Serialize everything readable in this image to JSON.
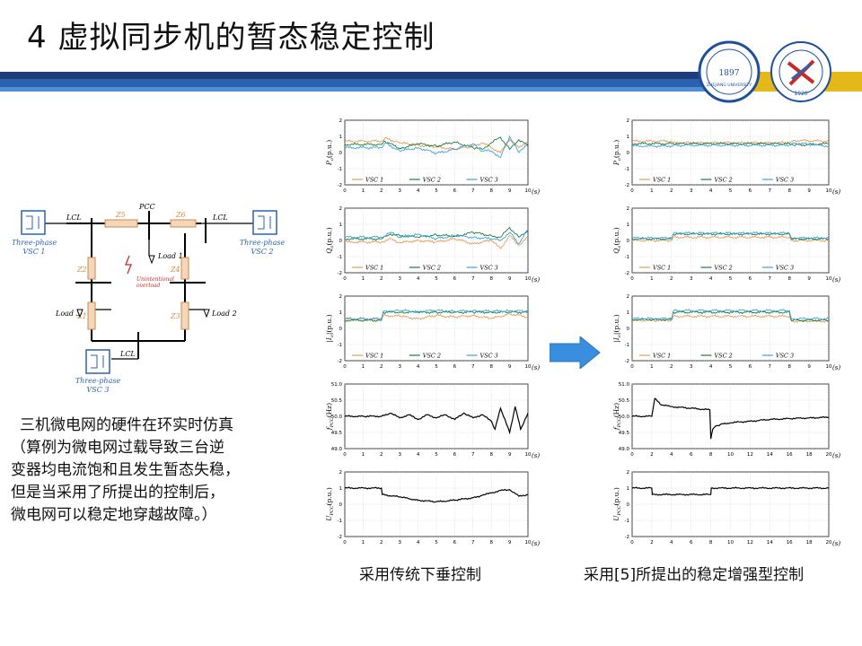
{
  "title": "4 虚拟同步机的暂态稳定控制",
  "colors": {
    "navy": "#1f3d7a",
    "blue": "#2b62b0",
    "accent": "#4f8fd4",
    "yellow": "#e4b818",
    "vsc1": "#e89a5a",
    "vsc2": "#1e7a3a",
    "vsc3": "#3aa3dc",
    "arrow": "#3a8ee0"
  },
  "logos": {
    "zju_text": "ZHEJIANG UNIVERSITY",
    "zju_year": "1897",
    "ee_year": "1920"
  },
  "circuit": {
    "pcc": "PCC",
    "lcl": [
      "LCL",
      "LCL",
      "LCL"
    ],
    "z": [
      "Z5",
      "Z6",
      "Z2",
      "Z4",
      "Z1",
      "Z3"
    ],
    "loads": [
      "Load 1",
      "Load 2",
      "Load 3"
    ],
    "vsc": [
      {
        "l1": "Three-phase",
        "l2": "VSC 1"
      },
      {
        "l1": "Three-phase",
        "l2": "VSC 2"
      },
      {
        "l1": "Three-phase",
        "l2": "VSC 3"
      }
    ],
    "overload": [
      "Unintentional",
      "overload"
    ]
  },
  "description": [
    "三机微电网的硬件在环实时仿真",
    "（算例为微电网过载导致三台逆",
    "变器均电流饱和且发生暂态失稳，",
    "但是当采用了所提出的控制后，",
    "微电网可以稳定地穿越故障。）"
  ],
  "captions": {
    "left": "采用传统下垂控制",
    "right": "采用[5]所提出的稳定增强型控制"
  },
  "chart_data": [
    {
      "type": "line",
      "column": "left",
      "ylabel_main": "P",
      "ylabel_sub": "o",
      "ylabel_unit": "(p.u.)",
      "xlabel": "(s)",
      "xlim": [
        0,
        10
      ],
      "xticks": [
        0,
        1,
        2,
        3,
        4,
        5,
        6,
        7,
        8,
        9,
        10
      ],
      "ylim": [
        -2,
        2
      ],
      "yticks": [
        "2",
        "1",
        "0",
        "-1",
        "-2"
      ],
      "grid": true,
      "legend": [
        "VSC 1",
        "VSC 2",
        "VSC 3"
      ],
      "series": [
        {
          "name": "VSC 1",
          "x": [
            0,
            2,
            2.2,
            3,
            4,
            5,
            6,
            7,
            7.5,
            8,
            8.5,
            9,
            9.5,
            10
          ],
          "y": [
            0.7,
            0.7,
            0.9,
            0.6,
            0.45,
            0.35,
            0.2,
            0.4,
            0.6,
            0.3,
            0.0,
            0.8,
            0.3,
            0.7
          ]
        },
        {
          "name": "VSC 2",
          "x": [
            0,
            2,
            2.2,
            3,
            4,
            5,
            6,
            7,
            7.5,
            8,
            8.5,
            9,
            9.5,
            10
          ],
          "y": [
            0.5,
            0.5,
            0.7,
            0.25,
            0.55,
            0.4,
            0.65,
            0.3,
            0.2,
            0.6,
            0.95,
            0.2,
            0.8,
            0.4
          ]
        },
        {
          "name": "VSC 3",
          "x": [
            0,
            2,
            2.2,
            3,
            4,
            5,
            6,
            7,
            7.5,
            8,
            8.5,
            9,
            9.5,
            10
          ],
          "y": [
            0.3,
            0.3,
            0.6,
            0.1,
            0.3,
            -0.05,
            0.2,
            0.55,
            0.1,
            0.1,
            -0.3,
            1.0,
            0.0,
            0.6
          ]
        }
      ]
    },
    {
      "type": "line",
      "column": "left",
      "ylabel_main": "Q",
      "ylabel_sub": "o",
      "ylabel_unit": "(p.u.)",
      "xlabel": "(s)",
      "xlim": [
        0,
        10
      ],
      "xticks": [
        0,
        1,
        2,
        3,
        4,
        5,
        6,
        7,
        8,
        9,
        10
      ],
      "ylim": [
        -2,
        2
      ],
      "yticks": [
        "2",
        "1",
        "0",
        "-1",
        "-2"
      ],
      "grid": true,
      "legend": [
        "VSC 1",
        "VSC 2",
        "VSC 3"
      ],
      "series": [
        {
          "name": "VSC 1",
          "x": [
            0,
            2,
            2.5,
            3,
            4,
            5,
            6,
            7,
            8,
            8.5,
            9,
            9.5,
            10
          ],
          "y": [
            -0.1,
            -0.1,
            0.1,
            -0.15,
            0.0,
            -0.1,
            0.1,
            -0.2,
            0.0,
            -0.5,
            0.3,
            -0.3,
            0.2
          ]
        },
        {
          "name": "VSC 2",
          "x": [
            0,
            2,
            2.5,
            3,
            4,
            5,
            6,
            7,
            8,
            8.5,
            9,
            9.5,
            10
          ],
          "y": [
            0.1,
            0.1,
            0.4,
            0.3,
            0.2,
            0.35,
            0.25,
            0.5,
            0.3,
            0.2,
            0.8,
            0.2,
            0.6
          ]
        },
        {
          "name": "VSC 3",
          "x": [
            0,
            2,
            2.5,
            3,
            4,
            5,
            6,
            7,
            8,
            8.5,
            9,
            9.5,
            10
          ],
          "y": [
            0.2,
            0.2,
            0.5,
            0.2,
            0.4,
            0.1,
            0.3,
            0.2,
            0.1,
            0.0,
            0.5,
            -0.2,
            0.7
          ]
        }
      ]
    },
    {
      "type": "line",
      "column": "left",
      "ylabel_main": "|I",
      "ylabel_sub": "o",
      "ylabel_tail": "|",
      "ylabel_unit": "(p.u.)",
      "xlabel": "(s)",
      "xlim": [
        0,
        10
      ],
      "xticks": [
        0,
        1,
        2,
        3,
        4,
        5,
        6,
        7,
        8,
        9,
        10
      ],
      "ylim": [
        -2,
        2
      ],
      "yticks": [
        "2",
        "1",
        "0",
        "-1",
        "-2"
      ],
      "grid": true,
      "legend": [
        "VSC 1",
        "VSC 2",
        "VSC 3"
      ],
      "series": [
        {
          "name": "VSC 1",
          "x": [
            0,
            2,
            2.1,
            3,
            4,
            5,
            6,
            7,
            8,
            9,
            10
          ],
          "y": [
            0.55,
            0.55,
            0.8,
            0.75,
            0.6,
            0.8,
            0.7,
            0.8,
            0.6,
            0.9,
            0.7
          ]
        },
        {
          "name": "VSC 2",
          "x": [
            0,
            2,
            2.1,
            3,
            4,
            5,
            6,
            7,
            8,
            9,
            10
          ],
          "y": [
            0.5,
            0.5,
            1.0,
            1.0,
            1.0,
            1.0,
            1.0,
            1.0,
            1.0,
            1.0,
            1.0
          ]
        },
        {
          "name": "VSC 3",
          "x": [
            0,
            2,
            2.1,
            3,
            4,
            5,
            6,
            7,
            8,
            9,
            10
          ],
          "y": [
            0.6,
            0.6,
            1.05,
            1.1,
            1.05,
            1.1,
            1.05,
            1.1,
            1.05,
            1.1,
            1.05
          ]
        }
      ]
    },
    {
      "type": "line",
      "column": "left",
      "ylabel_main": "f",
      "ylabel_sub": "PCC",
      "ylabel_unit": "(Hz)",
      "xlabel": "(s)",
      "xlim": [
        0,
        10
      ],
      "xticks": [
        0,
        1,
        2,
        3,
        4,
        5,
        6,
        7,
        8,
        9,
        10
      ],
      "ylim": [
        49,
        51
      ],
      "yticks": [
        "51.0",
        "50.5",
        "50.0",
        "49.5",
        "49.0"
      ],
      "grid": true,
      "legend": [],
      "series": [
        {
          "name": "",
          "x": [
            0,
            1,
            2,
            2.5,
            3,
            3.5,
            4,
            4.5,
            5,
            5.5,
            6,
            6.5,
            7,
            7.5,
            8,
            8.2,
            8.5,
            9,
            9.3,
            9.6,
            10
          ],
          "y": [
            50.0,
            50.0,
            50.0,
            50.1,
            49.95,
            50.05,
            49.9,
            50.05,
            49.95,
            50.05,
            49.9,
            50.1,
            49.95,
            50.05,
            49.85,
            49.6,
            50.25,
            49.5,
            50.3,
            49.6,
            50.1
          ]
        }
      ]
    },
    {
      "type": "line",
      "column": "left",
      "ylabel_main": "U",
      "ylabel_sub": "PCC",
      "ylabel_unit": "(p.u.)",
      "xlabel": "(s)",
      "xlim": [
        0,
        10
      ],
      "xticks": [
        0,
        1,
        2,
        3,
        4,
        5,
        6,
        7,
        8,
        9,
        10
      ],
      "ylim": [
        -2,
        2
      ],
      "yticks": [
        "2",
        "1",
        "0",
        "-1",
        "-2"
      ],
      "grid": true,
      "legend": [],
      "series": [
        {
          "name": "",
          "x": [
            0,
            2,
            2.05,
            3,
            4,
            5,
            6,
            7,
            7.5,
            8,
            8.5,
            9,
            9.5,
            10
          ],
          "y": [
            1.0,
            1.0,
            0.6,
            0.45,
            0.25,
            0.15,
            0.25,
            0.4,
            0.55,
            0.7,
            0.85,
            0.9,
            0.5,
            0.6
          ]
        }
      ]
    },
    {
      "type": "line",
      "column": "right",
      "ylabel_main": "P",
      "ylabel_sub": "o",
      "ylabel_unit": "(p.u.)",
      "xlabel": "(s)",
      "xlim": [
        0,
        10
      ],
      "xticks": [
        0,
        1,
        2,
        3,
        4,
        5,
        6,
        7,
        8,
        9,
        10
      ],
      "ylim": [
        -2,
        2
      ],
      "yticks": [
        "2",
        "1",
        "0",
        "-1",
        "-2"
      ],
      "grid": true,
      "legend": [
        "VSC 1",
        "VSC 2",
        "VSC 3"
      ],
      "series": [
        {
          "name": "VSC 1",
          "x": [
            0,
            2,
            2.1,
            8,
            8.2,
            10
          ],
          "y": [
            0.7,
            0.7,
            0.6,
            0.6,
            0.75,
            0.7
          ]
        },
        {
          "name": "VSC 2",
          "x": [
            0,
            2,
            2.1,
            8,
            8.2,
            10
          ],
          "y": [
            0.55,
            0.55,
            0.55,
            0.55,
            0.45,
            0.55
          ]
        },
        {
          "name": "VSC 3",
          "x": [
            0,
            2,
            2.1,
            8,
            8.2,
            10
          ],
          "y": [
            0.4,
            0.4,
            0.45,
            0.45,
            0.6,
            0.4
          ]
        }
      ]
    },
    {
      "type": "line",
      "column": "right",
      "ylabel_main": "Q",
      "ylabel_sub": "o",
      "ylabel_unit": "(p.u.)",
      "xlabel": "(s)",
      "xlim": [
        0,
        10
      ],
      "xticks": [
        0,
        1,
        2,
        3,
        4,
        5,
        6,
        7,
        8,
        9,
        10
      ],
      "ylim": [
        -2,
        2
      ],
      "yticks": [
        "2",
        "1",
        "0",
        "-1",
        "-2"
      ],
      "grid": true,
      "legend": [
        "VSC 1",
        "VSC 2",
        "VSC 3"
      ],
      "series": [
        {
          "name": "VSC 1",
          "x": [
            0,
            2,
            2.1,
            8,
            8.1,
            10
          ],
          "y": [
            0.0,
            0.0,
            0.2,
            0.2,
            0.0,
            0.0
          ]
        },
        {
          "name": "VSC 2",
          "x": [
            0,
            2,
            2.1,
            8,
            8.1,
            10
          ],
          "y": [
            0.1,
            0.1,
            0.4,
            0.4,
            0.1,
            0.1
          ]
        },
        {
          "name": "VSC 3",
          "x": [
            0,
            2,
            2.1,
            8,
            8.1,
            10
          ],
          "y": [
            0.15,
            0.15,
            0.45,
            0.45,
            0.15,
            0.15
          ]
        }
      ]
    },
    {
      "type": "line",
      "column": "right",
      "ylabel_main": "|I",
      "ylabel_sub": "o",
      "ylabel_tail": "|",
      "ylabel_unit": "(p.u.)",
      "xlabel": "(s)",
      "xlim": [
        0,
        10
      ],
      "xticks": [
        0,
        1,
        2,
        3,
        4,
        5,
        6,
        7,
        8,
        9,
        10
      ],
      "ylim": [
        -2,
        2
      ],
      "yticks": [
        "2",
        "1",
        "0",
        "-1",
        "-2"
      ],
      "grid": true,
      "legend": [
        "VSC 1",
        "VSC 2",
        "VSC 3"
      ],
      "series": [
        {
          "name": "VSC 1",
          "x": [
            0,
            2,
            2.1,
            8,
            8.1,
            10
          ],
          "y": [
            0.5,
            0.5,
            0.75,
            0.75,
            0.45,
            0.45
          ]
        },
        {
          "name": "VSC 2",
          "x": [
            0,
            2,
            2.1,
            8,
            8.1,
            10
          ],
          "y": [
            0.55,
            0.55,
            1.0,
            1.0,
            0.5,
            0.5
          ]
        },
        {
          "name": "VSC 3",
          "x": [
            0,
            2,
            2.1,
            8,
            8.1,
            10
          ],
          "y": [
            0.6,
            0.6,
            1.1,
            1.1,
            0.6,
            0.6
          ]
        }
      ]
    },
    {
      "type": "line",
      "column": "right",
      "ylabel_main": "f",
      "ylabel_sub": "PCC",
      "ylabel_unit": "(Hz)",
      "xlabel": "(s)",
      "xlim": [
        0,
        20
      ],
      "xticks": [
        0,
        2,
        4,
        6,
        8,
        10,
        12,
        14,
        16,
        18,
        20
      ],
      "ylim": [
        49,
        51
      ],
      "yticks": [
        "51.0",
        "50.5",
        "50.0",
        "49.5",
        "49.0"
      ],
      "grid": true,
      "legend": [],
      "series": [
        {
          "name": "",
          "x": [
            0,
            2,
            2.3,
            3,
            4,
            6,
            7.9,
            8.0,
            8.2,
            8.5,
            9,
            10,
            12,
            14,
            16,
            18,
            20
          ],
          "y": [
            50.0,
            50.0,
            50.55,
            50.35,
            50.3,
            50.25,
            50.2,
            49.3,
            49.6,
            49.7,
            49.75,
            49.8,
            49.85,
            49.9,
            49.93,
            49.95,
            49.97
          ]
        }
      ]
    },
    {
      "type": "line",
      "column": "right",
      "ylabel_main": "U",
      "ylabel_sub": "PCC",
      "ylabel_unit": "(p.u.)",
      "xlabel": "(s)",
      "xlim": [
        0,
        20
      ],
      "xticks": [
        0,
        2,
        4,
        6,
        8,
        10,
        12,
        14,
        16,
        18,
        20
      ],
      "ylim": [
        -2,
        2
      ],
      "yticks": [
        "2",
        "1",
        "0",
        "-1",
        "-2"
      ],
      "grid": true,
      "legend": [],
      "series": [
        {
          "name": "",
          "x": [
            0,
            2,
            2.05,
            8,
            8.05,
            20
          ],
          "y": [
            1.0,
            1.0,
            0.6,
            0.6,
            1.0,
            1.0
          ]
        }
      ]
    }
  ]
}
